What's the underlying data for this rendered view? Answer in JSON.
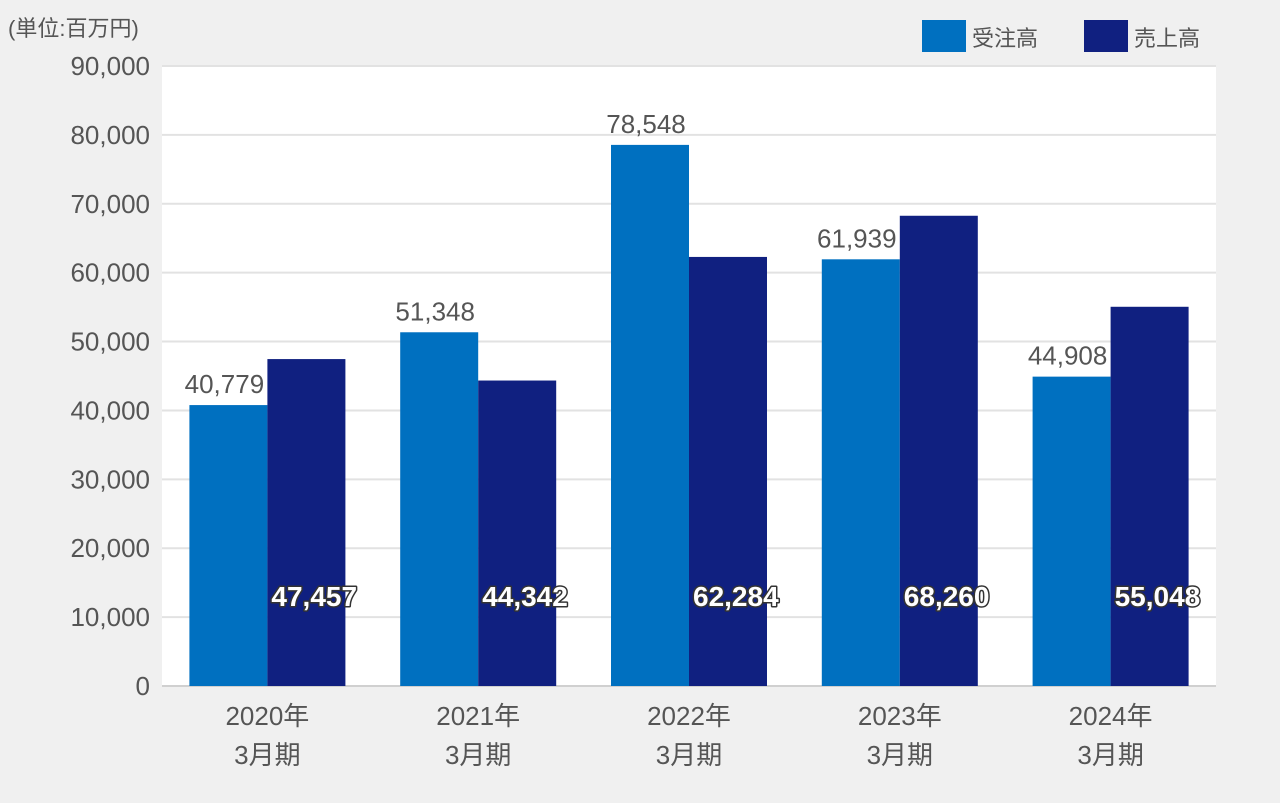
{
  "chart_data": {
    "type": "bar",
    "unit_label": "(単位:百万円)",
    "categories": [
      [
        "2020年",
        "3月期"
      ],
      [
        "2021年",
        "3月期"
      ],
      [
        "2022年",
        "3月期"
      ],
      [
        "2023年",
        "3月期"
      ],
      [
        "2024年",
        "3月期"
      ]
    ],
    "series": [
      {
        "name": "受注高",
        "color": "#0070c0",
        "values": [
          40779,
          51348,
          78548,
          61939,
          44908
        ],
        "labels": [
          "40,779",
          "51,348",
          "78,548",
          "61,939",
          "44,908"
        ]
      },
      {
        "name": "売上高",
        "color": "#102080",
        "values": [
          47457,
          44342,
          62284,
          68260,
          55048
        ],
        "labels": [
          "47,457",
          "44,342",
          "62,284",
          "68,260",
          "55,048"
        ]
      }
    ],
    "yticks": [
      "0",
      "10,000",
      "20,000",
      "30,000",
      "40,000",
      "50,000",
      "60,000",
      "70,000",
      "80,000",
      "90,000"
    ],
    "ylim": [
      0,
      90000
    ],
    "grid": true,
    "legend_position": "top-right"
  }
}
